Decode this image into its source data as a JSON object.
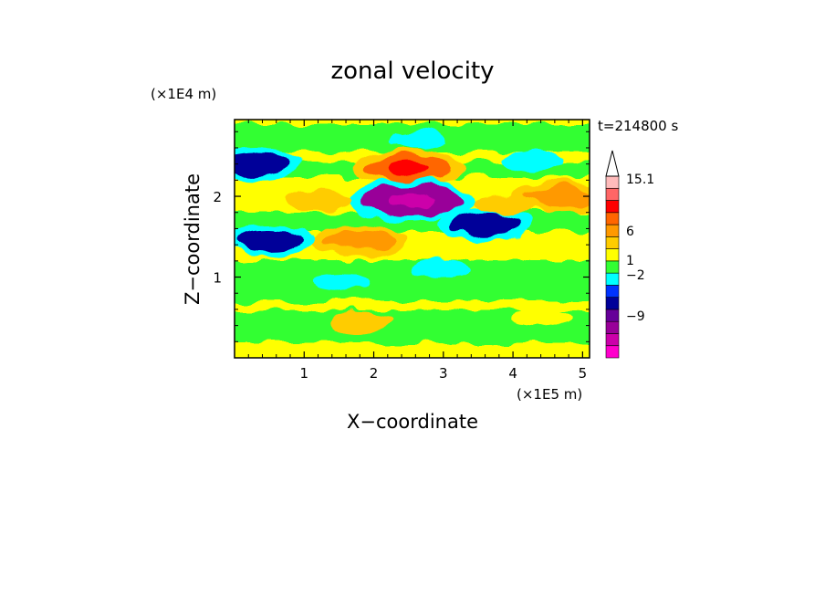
{
  "chart_data": {
    "type": "heatmap",
    "title": "zonal velocity",
    "xlabel": "X−coordinate",
    "ylabel": "Z−coordinate",
    "x_unit": "(×1E5 m)",
    "y_unit": "(×1E4 m)",
    "time_label": "t=214800 s",
    "xlim": [
      0,
      5.1
    ],
    "ylim": [
      0,
      2.95
    ],
    "x_ticks": [
      "1",
      "2",
      "3",
      "4",
      "5"
    ],
    "y_ticks": [
      "1",
      "2"
    ],
    "colorbar": {
      "labels": [
        "15.1",
        "6",
        "1",
        "−2",
        "−9"
      ],
      "levels": [
        -15,
        -12,
        -9,
        -6,
        -3,
        -2,
        -1,
        0,
        1,
        2,
        3,
        6,
        9,
        12,
        15.1
      ],
      "colors": [
        "#ff00cc",
        "#cc00aa",
        "#990099",
        "#660099",
        "#000099",
        "#0033ff",
        "#00ffff",
        "#33ff33",
        "#ffff00",
        "#ffcc00",
        "#ff9900",
        "#ff6600",
        "#ff0000",
        "#ff6666",
        "#ffbbbb"
      ]
    },
    "features": [
      {
        "x": 2.5,
        "z": 2.35,
        "value": 6
      },
      {
        "x": 2.55,
        "z": 1.95,
        "value": -9
      },
      {
        "x": 1.8,
        "z": 1.45,
        "value": 3
      },
      {
        "x": 1.2,
        "z": 1.95,
        "value": 2
      },
      {
        "x": 0.3,
        "z": 2.4,
        "value": -3
      },
      {
        "x": 0.5,
        "z": 1.45,
        "value": -3
      },
      {
        "x": 3.6,
        "z": 1.65,
        "value": -3
      },
      {
        "x": 4.3,
        "z": 2.45,
        "value": -1
      },
      {
        "x": 4.7,
        "z": 2.0,
        "value": 3
      },
      {
        "x": 3.9,
        "z": 1.9,
        "value": 2
      },
      {
        "x": 1.55,
        "z": 0.95,
        "value": -1
      },
      {
        "x": 2.95,
        "z": 1.1,
        "value": -1
      },
      {
        "x": 1.8,
        "z": 0.45,
        "value": 2
      },
      {
        "x": 4.4,
        "z": 0.5,
        "value": 1
      },
      {
        "x": 2.6,
        "z": 2.7,
        "value": -1
      }
    ]
  }
}
